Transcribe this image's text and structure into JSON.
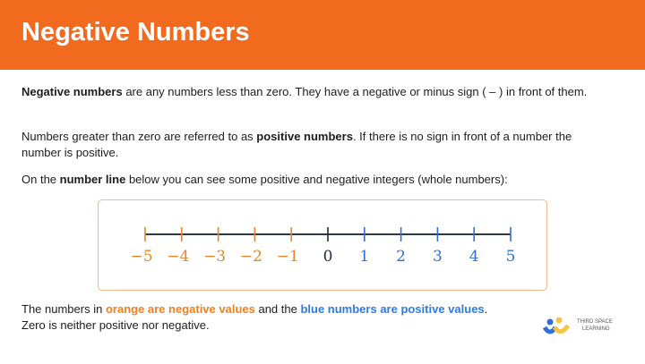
{
  "header": {
    "title": "Negative Numbers"
  },
  "intro": {
    "p1_bold": "Negative numbers",
    "p1_rest": " are any numbers less than zero. They have a negative or minus sign ( – ) in front of them.",
    "p2_start": "Numbers greater than zero are referred to as ",
    "p2_bold": "positive numbers",
    "p2_rest": ". If there is no sign in front of a number the number is positive.",
    "p3_start": "On the ",
    "p3_bold": "number line",
    "p3_rest": " below you can see some positive and negative integers (whole numbers):"
  },
  "number_line": {
    "labels": [
      "−5",
      "−4",
      "−3",
      "−2",
      "−1",
      "0",
      "1",
      "2",
      "3",
      "4",
      "5"
    ],
    "negative_color": "#e8852a",
    "zero_color": "#1f2d3d",
    "positive_color": "#2f6fd6",
    "line_color": "#2a3a4a"
  },
  "footer": {
    "start": "The numbers in ",
    "orange": "orange are negative values",
    "mid": " and the ",
    "blue": "blue numbers are positive values",
    "end": ".",
    "line2": "Zero is neither positive nor negative."
  },
  "logo": {
    "text1": "THIRD SPACE",
    "text2": "LEARNING"
  }
}
